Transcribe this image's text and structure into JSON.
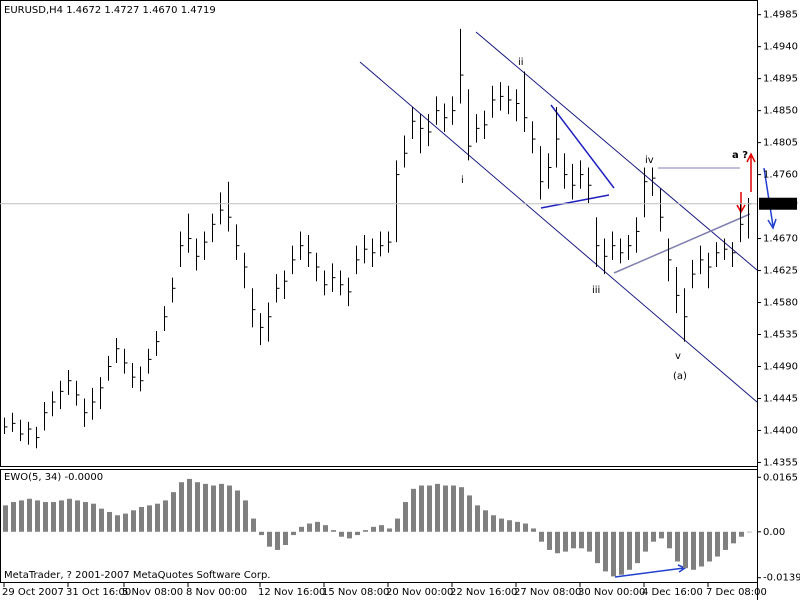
{
  "chart_data": [
    {
      "type": "ohlc",
      "title": "EURUSD,H4  1.4672 1.4727 1.4670 1.4719",
      "color": "#000000",
      "categories": [
        "29 Oct 2007",
        null,
        null,
        null,
        null,
        null,
        null,
        null,
        "31 Oct 16:00",
        null,
        null,
        null,
        null,
        null,
        null,
        "5 Nov 08:00",
        null,
        null,
        null,
        null,
        null,
        null,
        null,
        "8 Nov 00:00",
        null,
        null,
        null,
        null,
        null,
        null,
        null,
        null,
        "12 Nov 16:00",
        null,
        null,
        null,
        null,
        null,
        null,
        null,
        "15 Nov 08:00",
        null,
        null,
        null,
        null,
        null,
        null,
        null,
        "20 Nov 00:00",
        null,
        null,
        null,
        null,
        null,
        null,
        null,
        "22 Nov 16:00",
        null,
        null,
        null,
        null,
        null,
        null,
        null,
        "27 Nov 08:00",
        null,
        null,
        null,
        null,
        null,
        null,
        null,
        "30 Nov 00:00",
        null,
        null,
        null,
        null,
        null,
        null,
        null,
        "4 Dec 16:00",
        null,
        null,
        null,
        null,
        null,
        null,
        null,
        "7 Dec 08:00",
        null,
        null,
        null,
        null,
        null
      ],
      "high": [
        1.4418,
        1.4425,
        1.4415,
        1.4412,
        1.4405,
        1.444,
        1.4455,
        1.447,
        1.4485,
        1.447,
        1.4445,
        1.446,
        1.4475,
        1.4505,
        1.453,
        1.4515,
        1.4495,
        1.449,
        1.4515,
        1.454,
        1.4575,
        1.4615,
        1.468,
        1.4705,
        1.467,
        1.468,
        1.4705,
        1.4735,
        1.475,
        1.469,
        1.465,
        1.46,
        1.4565,
        1.458,
        1.462,
        1.4625,
        1.466,
        1.468,
        1.4675,
        1.465,
        1.4625,
        1.4635,
        1.4625,
        1.4615,
        1.466,
        1.4675,
        1.467,
        1.468,
        1.468,
        1.478,
        1.4815,
        1.4855,
        1.4845,
        1.4845,
        1.487,
        1.486,
        1.487,
        1.4965,
        1.488,
        1.4845,
        1.485,
        1.4885,
        1.489,
        1.4885,
        1.488,
        1.4905,
        1.4835,
        1.48,
        1.479,
        1.4855,
        1.479,
        1.4775,
        1.478,
        1.477,
        1.47,
        1.467,
        1.468,
        1.467,
        1.4675,
        1.47,
        1.477,
        1.477,
        1.474,
        1.467,
        1.463,
        1.46,
        1.464,
        1.466,
        1.465,
        1.4665,
        1.467,
        1.4665,
        1.472,
        1.4727
      ],
      "low": [
        1.4395,
        1.4398,
        1.4385,
        1.438,
        1.4375,
        1.44,
        1.442,
        1.443,
        1.445,
        1.4435,
        1.4405,
        1.4415,
        1.443,
        1.447,
        1.4495,
        1.448,
        1.446,
        1.4455,
        1.448,
        1.4505,
        1.454,
        1.458,
        1.463,
        1.465,
        1.4625,
        1.464,
        1.4665,
        1.469,
        1.468,
        1.464,
        1.46,
        1.4545,
        1.452,
        1.4525,
        1.458,
        1.4585,
        1.462,
        1.464,
        1.463,
        1.461,
        1.459,
        1.4595,
        1.459,
        1.4575,
        1.462,
        1.4635,
        1.463,
        1.4645,
        1.465,
        1.4665,
        1.477,
        1.481,
        1.479,
        1.48,
        1.483,
        1.482,
        1.483,
        1.486,
        1.478,
        1.4805,
        1.481,
        1.484,
        1.485,
        1.4845,
        1.4835,
        1.482,
        1.479,
        1.4725,
        1.474,
        1.477,
        1.474,
        1.4725,
        1.474,
        1.472,
        1.463,
        1.462,
        1.464,
        1.4635,
        1.464,
        1.465,
        1.47,
        1.473,
        1.468,
        1.461,
        1.4565,
        1.4525,
        1.46,
        1.462,
        1.46,
        1.463,
        1.464,
        1.463,
        1.4665,
        1.467
      ],
      "close": [
        1.4405,
        1.441,
        1.4395,
        1.4402,
        1.439,
        1.4425,
        1.444,
        1.4455,
        1.447,
        1.445,
        1.4425,
        1.444,
        1.446,
        1.449,
        1.4515,
        1.4495,
        1.4475,
        1.447,
        1.45,
        1.4525,
        1.456,
        1.46,
        1.466,
        1.467,
        1.4645,
        1.4665,
        1.469,
        1.471,
        1.47,
        1.466,
        1.463,
        1.457,
        1.4545,
        1.456,
        1.46,
        1.461,
        1.464,
        1.466,
        1.465,
        1.463,
        1.4605,
        1.4615,
        1.4605,
        1.4595,
        1.464,
        1.4655,
        1.465,
        1.466,
        1.4665,
        1.476,
        1.479,
        1.4835,
        1.4825,
        1.482,
        1.485,
        1.484,
        1.485,
        1.49,
        1.48,
        1.4825,
        1.483,
        1.4865,
        1.487,
        1.4865,
        1.486,
        1.484,
        1.481,
        1.475,
        1.477,
        1.481,
        1.476,
        1.4745,
        1.476,
        1.4745,
        1.466,
        1.4645,
        1.466,
        1.465,
        1.466,
        1.468,
        1.475,
        1.4755,
        1.47,
        1.464,
        1.459,
        1.456,
        1.462,
        1.464,
        1.463,
        1.465,
        1.4655,
        1.465,
        1.469,
        1.4719
      ],
      "ylim": [
        1.435,
        1.5
      ],
      "yticks": [
        {
          "value": 1.4985,
          "label": "1.4985"
        },
        {
          "value": 1.494,
          "label": "1.4940"
        },
        {
          "value": 1.4895,
          "label": "1.4895"
        },
        {
          "value": 1.485,
          "label": "1.4850"
        },
        {
          "value": 1.4805,
          "label": "1.4805"
        },
        {
          "value": 1.476,
          "label": "1.4760"
        },
        {
          "value": 1.467,
          "label": "1.4670"
        },
        {
          "value": 1.4625,
          "label": "1.4625"
        },
        {
          "value": 1.458,
          "label": "1.4580"
        },
        {
          "value": 1.4535,
          "label": "1.4535"
        },
        {
          "value": 1.449,
          "label": "1.4490"
        },
        {
          "value": 1.4445,
          "label": "1.4445"
        },
        {
          "value": 1.44,
          "label": "1.4400"
        },
        {
          "value": 1.4355,
          "label": "1.4355"
        }
      ],
      "annotations": [
        {
          "text": "i",
          "color": "#c00000"
        },
        {
          "text": "ii",
          "color": "#c00000"
        },
        {
          "text": "iii",
          "color": "#c00000"
        },
        {
          "text": "iv",
          "color": "#c00000"
        },
        {
          "text": "v",
          "color": "#c00000"
        },
        {
          "text": "(a)",
          "color": "#c00000"
        },
        {
          "text": "a ?",
          "color": "#ff8000"
        }
      ]
    },
    {
      "type": "bar",
      "title": "EWO(5, 34) -0.0000",
      "color": "#808080",
      "values": [
        0.008,
        0.009,
        0.0095,
        0.01,
        0.0095,
        0.009,
        0.009,
        0.0095,
        0.01,
        0.0095,
        0.009,
        0.0085,
        0.007,
        0.006,
        0.005,
        0.0055,
        0.0065,
        0.0075,
        0.008,
        0.0085,
        0.0095,
        0.012,
        0.015,
        0.016,
        0.015,
        0.0145,
        0.014,
        0.0145,
        0.014,
        0.0125,
        0.0095,
        0.004,
        -0.001,
        -0.0045,
        -0.0055,
        -0.004,
        -0.001,
        0.0015,
        0.0025,
        0.003,
        0.002,
        0.0005,
        -0.0015,
        -0.002,
        -0.001,
        0.0005,
        0.0015,
        0.002,
        0.001,
        0.004,
        0.009,
        0.013,
        0.014,
        0.014,
        0.0145,
        0.014,
        0.014,
        0.0135,
        0.011,
        0.008,
        0.0065,
        0.005,
        0.004,
        0.0035,
        0.003,
        0.0025,
        0.001,
        -0.003,
        -0.0055,
        -0.0065,
        -0.006,
        -0.005,
        -0.005,
        -0.006,
        -0.0095,
        -0.012,
        -0.0135,
        -0.013,
        -0.0115,
        -0.0095,
        -0.006,
        -0.003,
        -0.002,
        -0.005,
        -0.009,
        -0.011,
        -0.0115,
        -0.0105,
        -0.009,
        -0.0075,
        -0.0055,
        -0.0035,
        -0.0015,
        -3e-05
      ],
      "ylim": [
        -0.0152,
        0.0187
      ],
      "yticks": [
        0.0165,
        {
          "value": 0,
          "label": "0.00"
        },
        -0.0139
      ]
    }
  ],
  "footer": "MetaTrader, ? 2001-2007 MetaQuotes Software Corp."
}
